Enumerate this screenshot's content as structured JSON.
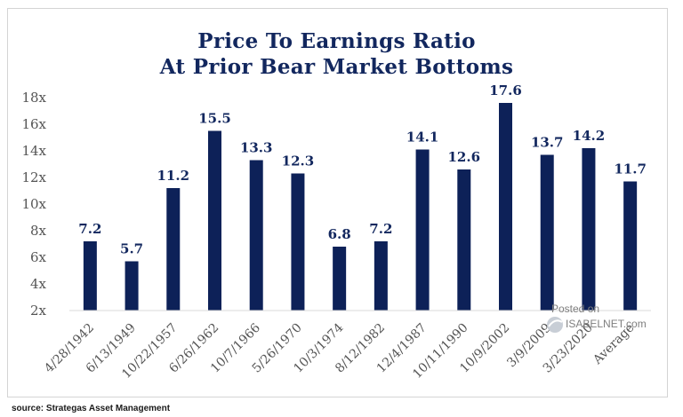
{
  "chart_data": {
    "type": "bar",
    "title": "Price To Earnings Ratio",
    "subtitle": "At Prior Bear Market Bottoms",
    "categories": [
      "4/28/1942",
      "6/13/1949",
      "10/22/1957",
      "6/26/1962",
      "10/7/1966",
      "5/26/1970",
      "10/3/1974",
      "8/12/1982",
      "12/4/1987",
      "10/11/1990",
      "10/9/2002",
      "3/9/2009",
      "3/23/2020",
      "Average"
    ],
    "values": [
      7.2,
      5.7,
      11.2,
      15.5,
      13.3,
      12.3,
      6.8,
      7.2,
      14.1,
      12.6,
      17.6,
      13.7,
      14.2,
      11.7
    ],
    "data_labels": [
      "7.2",
      "5.7",
      "11.2",
      "15.5",
      "13.3",
      "12.3",
      "6.8",
      "7.2",
      "14.1",
      "12.6",
      "17.6",
      "13.7",
      "14.2",
      "11.7"
    ],
    "ylim": [
      2,
      18
    ],
    "yticks": [
      2,
      4,
      6,
      8,
      10,
      12,
      14,
      16,
      18
    ],
    "ytick_labels": [
      "2x",
      "4x",
      "6x",
      "8x",
      "10x",
      "12x",
      "14x",
      "16x",
      "18x"
    ],
    "xlabel": "",
    "ylabel": "",
    "grid": false,
    "legend": "none",
    "bar_color": "#0d2158",
    "label_color": "#12275e"
  },
  "source": "source: Strategas Asset Management",
  "watermark": {
    "line1": "Posted on",
    "line2": "ISABELNET.com"
  }
}
